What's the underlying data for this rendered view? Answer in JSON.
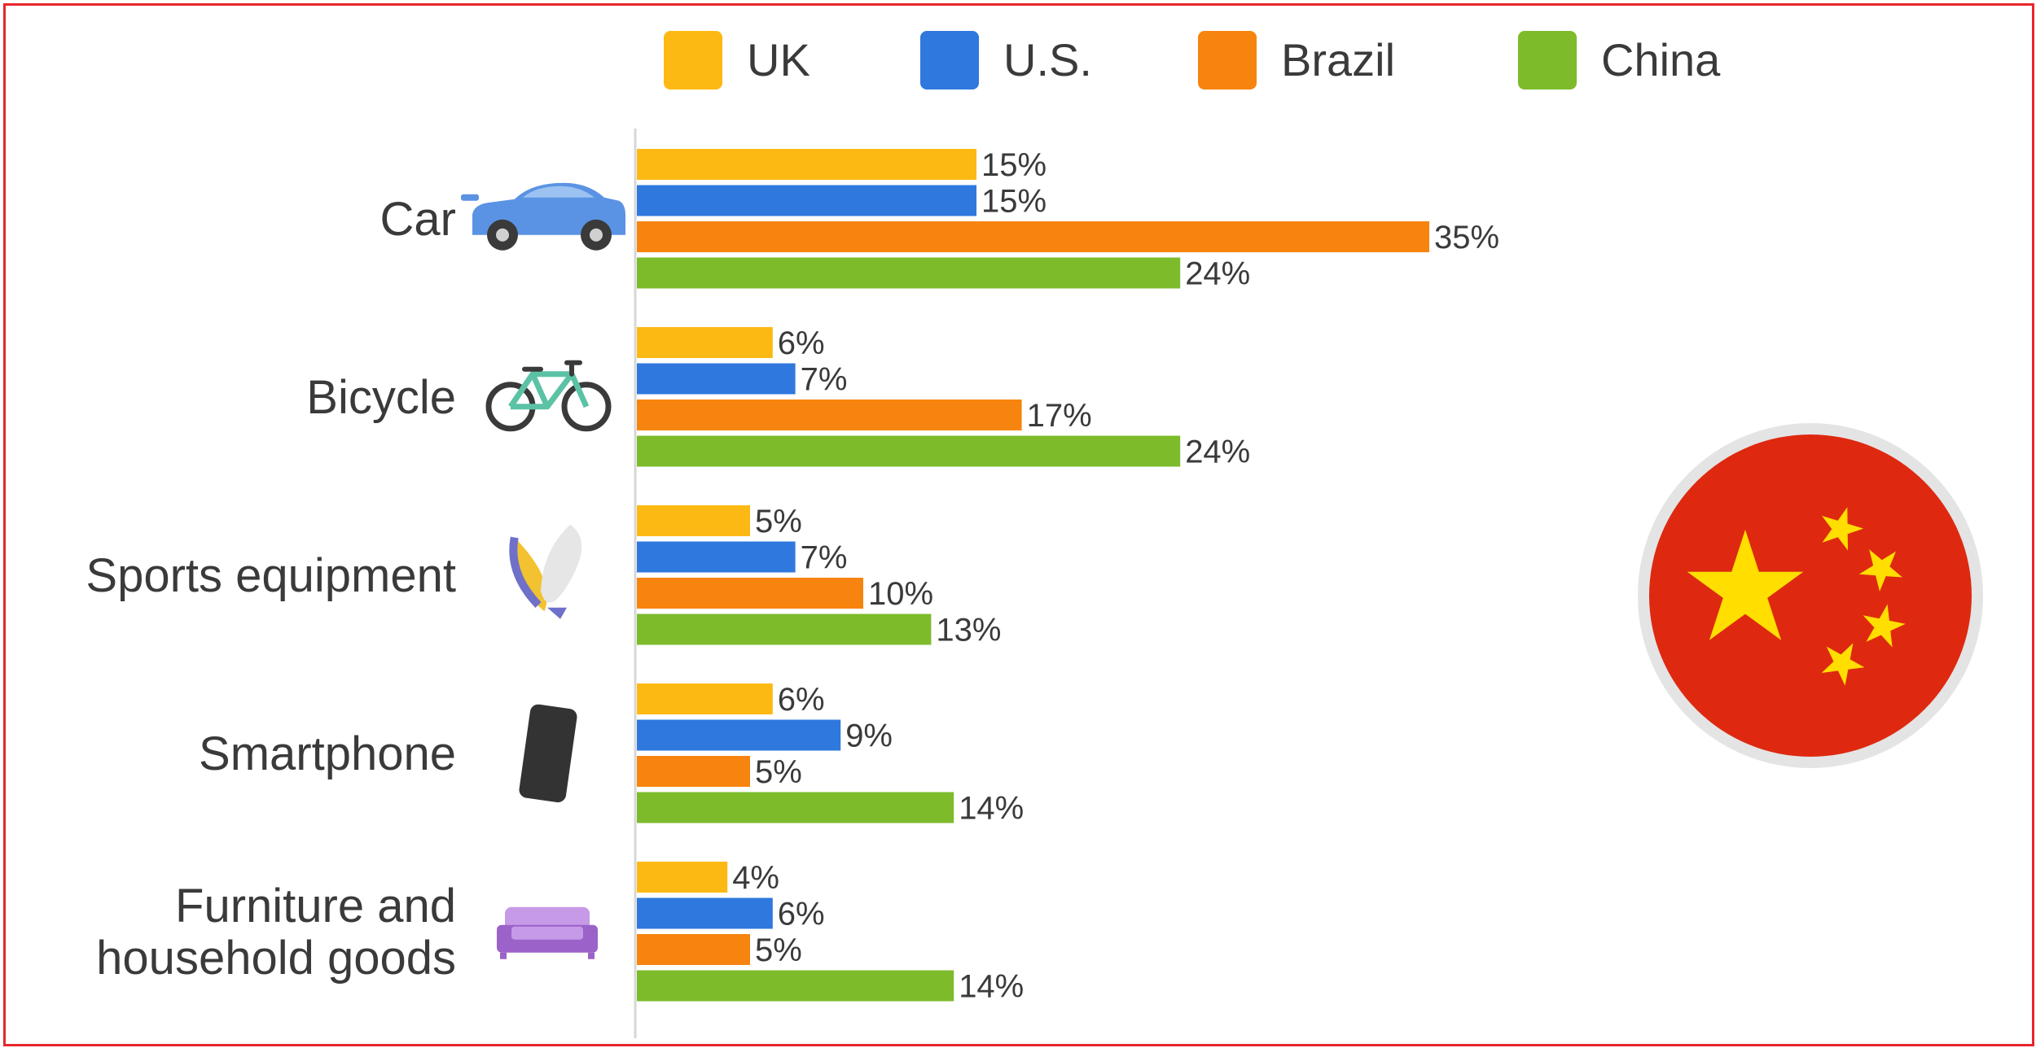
{
  "chart_data": {
    "type": "bar",
    "orientation": "horizontal",
    "categories": [
      "Car",
      "Bicycle",
      "Sports equipment",
      "Smartphone",
      "Furniture and household goods"
    ],
    "category_icons": [
      "car-icon",
      "bicycle-icon",
      "surfboard-icon",
      "smartphone-icon",
      "sofa-icon"
    ],
    "series": [
      {
        "name": "UK",
        "color": "#fdb913",
        "values": [
          15,
          6,
          5,
          6,
          4
        ]
      },
      {
        "name": "U.S.",
        "color": "#2f78dd",
        "values": [
          15,
          7,
          7,
          9,
          6
        ]
      },
      {
        "name": "Brazil",
        "color": "#f7840f",
        "values": [
          35,
          17,
          10,
          5,
          5
        ]
      },
      {
        "name": "China",
        "color": "#7dbb2b",
        "values": [
          24,
          24,
          13,
          14,
          14
        ]
      }
    ],
    "value_suffix": "%",
    "xlim": [
      0,
      35
    ],
    "grid": false,
    "legend": "top",
    "decoration": "china-flag-icon"
  }
}
